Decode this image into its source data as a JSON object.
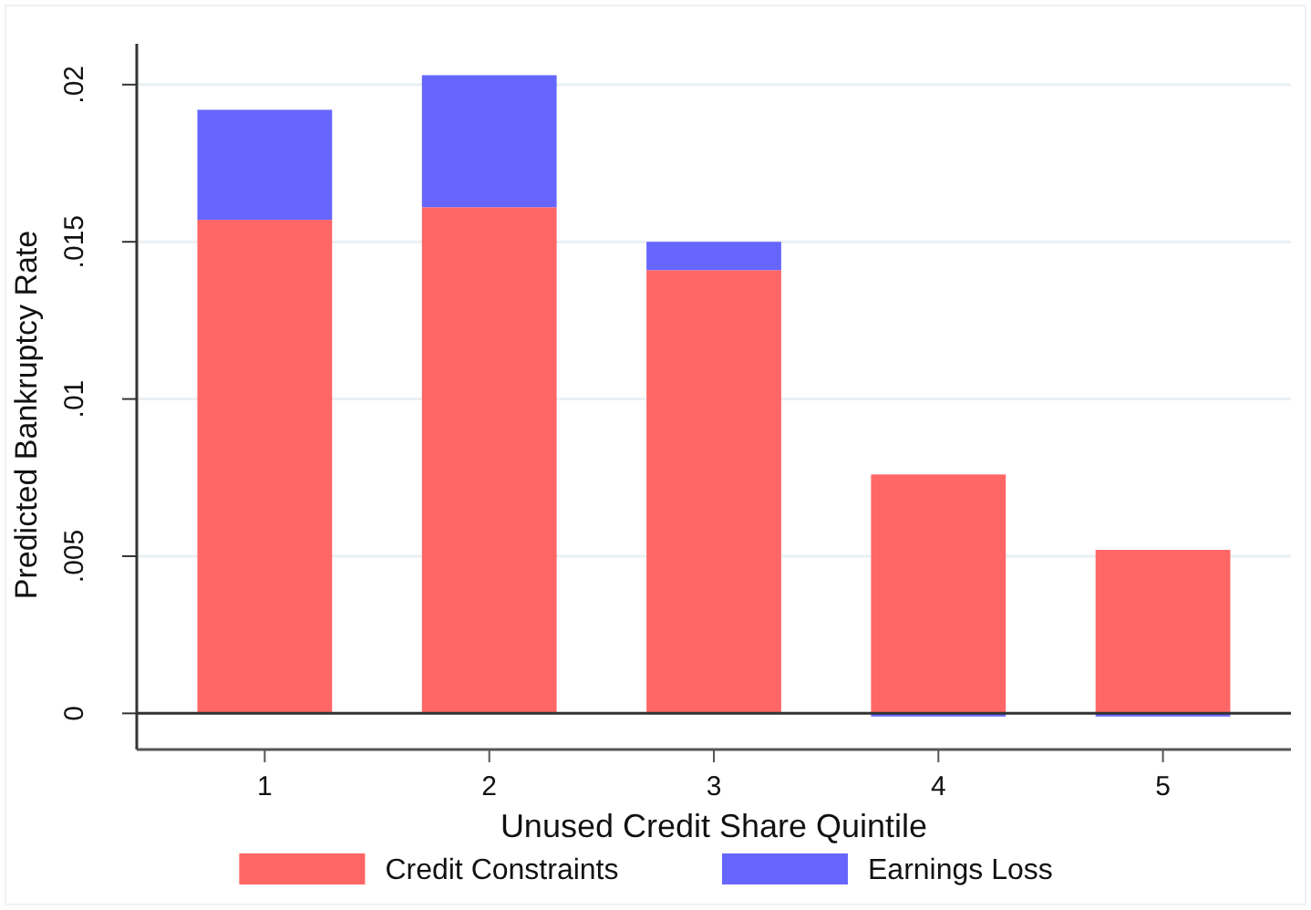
{
  "chart_data": {
    "type": "bar",
    "stacked": true,
    "xlabel": "Unused Credit Share Quintile",
    "ylabel": "Predicted Bankruptcy Rate",
    "categories": [
      "1",
      "2",
      "3",
      "4",
      "5"
    ],
    "series": [
      {
        "name": "Credit Constraints",
        "color": "#ff6666",
        "values": [
          0.0157,
          0.0161,
          0.0141,
          0.0076,
          0.0052
        ]
      },
      {
        "name": "Earnings Loss",
        "color": "#6666ff",
        "values": [
          0.0035,
          0.0042,
          0.0009,
          -0.0001,
          -0.0001
        ]
      }
    ],
    "ylim": [
      -0.00115,
      0.0213
    ],
    "yticks": [
      {
        "value": 0,
        "label": "0"
      },
      {
        "value": 0.005,
        "label": ".005"
      },
      {
        "value": 0.01,
        "label": ".01"
      },
      {
        "value": 0.015,
        "label": ".015"
      },
      {
        "value": 0.02,
        "label": ".02"
      }
    ],
    "ref_lines": [
      {
        "axis": "y",
        "value": 0,
        "color": "#333333"
      }
    ],
    "grid": "y",
    "legend": "bottom"
  }
}
